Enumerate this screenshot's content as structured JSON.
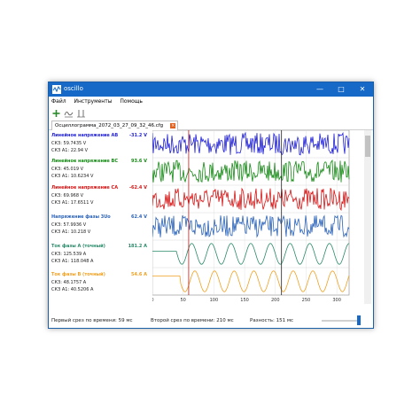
{
  "window": {
    "title": "oscillo"
  },
  "menu": {
    "items": [
      "Файл",
      "Инструменты",
      "Помощь"
    ]
  },
  "tab": {
    "label": "Осциллограмма_2072_03_27_09_32_46.cfg"
  },
  "colors": {
    "titlebar": "#1669c7",
    "ab": "#1f1fd6",
    "bc": "#138a13",
    "ca": "#d61414",
    "phase": "#2a62b8",
    "ia": "#2a8a6a",
    "ib": "#f0a020"
  },
  "channels": [
    {
      "name": "Линейное напряжение AB",
      "value": "-31.2  V",
      "color": "#1f1fd6",
      "r1": "СКЗ:  59.7435  V",
      "r2": "СКЗ А1:   22.94  V"
    },
    {
      "name": "Линейное напряжение BC",
      "value": "93.6  V",
      "color": "#138a13",
      "r1": "СКЗ:  45.019  V",
      "r2": "СКЗ А1:   10.6234  V"
    },
    {
      "name": "Линейное напряжение CA",
      "value": "-62.4  V",
      "color": "#d61414",
      "r1": "СКЗ:  69.968  V",
      "r2": "СКЗ А1:   17.6511  V"
    },
    {
      "name": "Напряжение фазы 3Uo",
      "value": "62.4  V",
      "color": "#2a62b8",
      "r1": "СКЗ:  57.9936  V",
      "r2": "СКЗ А1:   10.218  V"
    },
    {
      "name": "Ток фазы A (точный)",
      "value": "181.2  A",
      "color": "#2a8a6a",
      "r1": "СКЗ:  125.539  A",
      "r2": "СКЗ А1:   118.048  A"
    },
    {
      "name": "Ток фазы B (точный)",
      "value": "54.6  A",
      "color": "#f0a020",
      "r1": "СКЗ:  48.1757  A",
      "r2": "СКЗ А1:   40.5206  A"
    }
  ],
  "axis": {
    "ticks": [
      "0",
      "50",
      "100",
      "150",
      "200",
      "250",
      "300"
    ],
    "xmin": 0,
    "xmax": 320,
    "cursor1": 59,
    "cursor2": 210
  },
  "status": {
    "first": "Первый срез по времени: 59 мс",
    "second": "Второй срез по времени: 210 мс",
    "diff": "Разность: 151 мс"
  }
}
